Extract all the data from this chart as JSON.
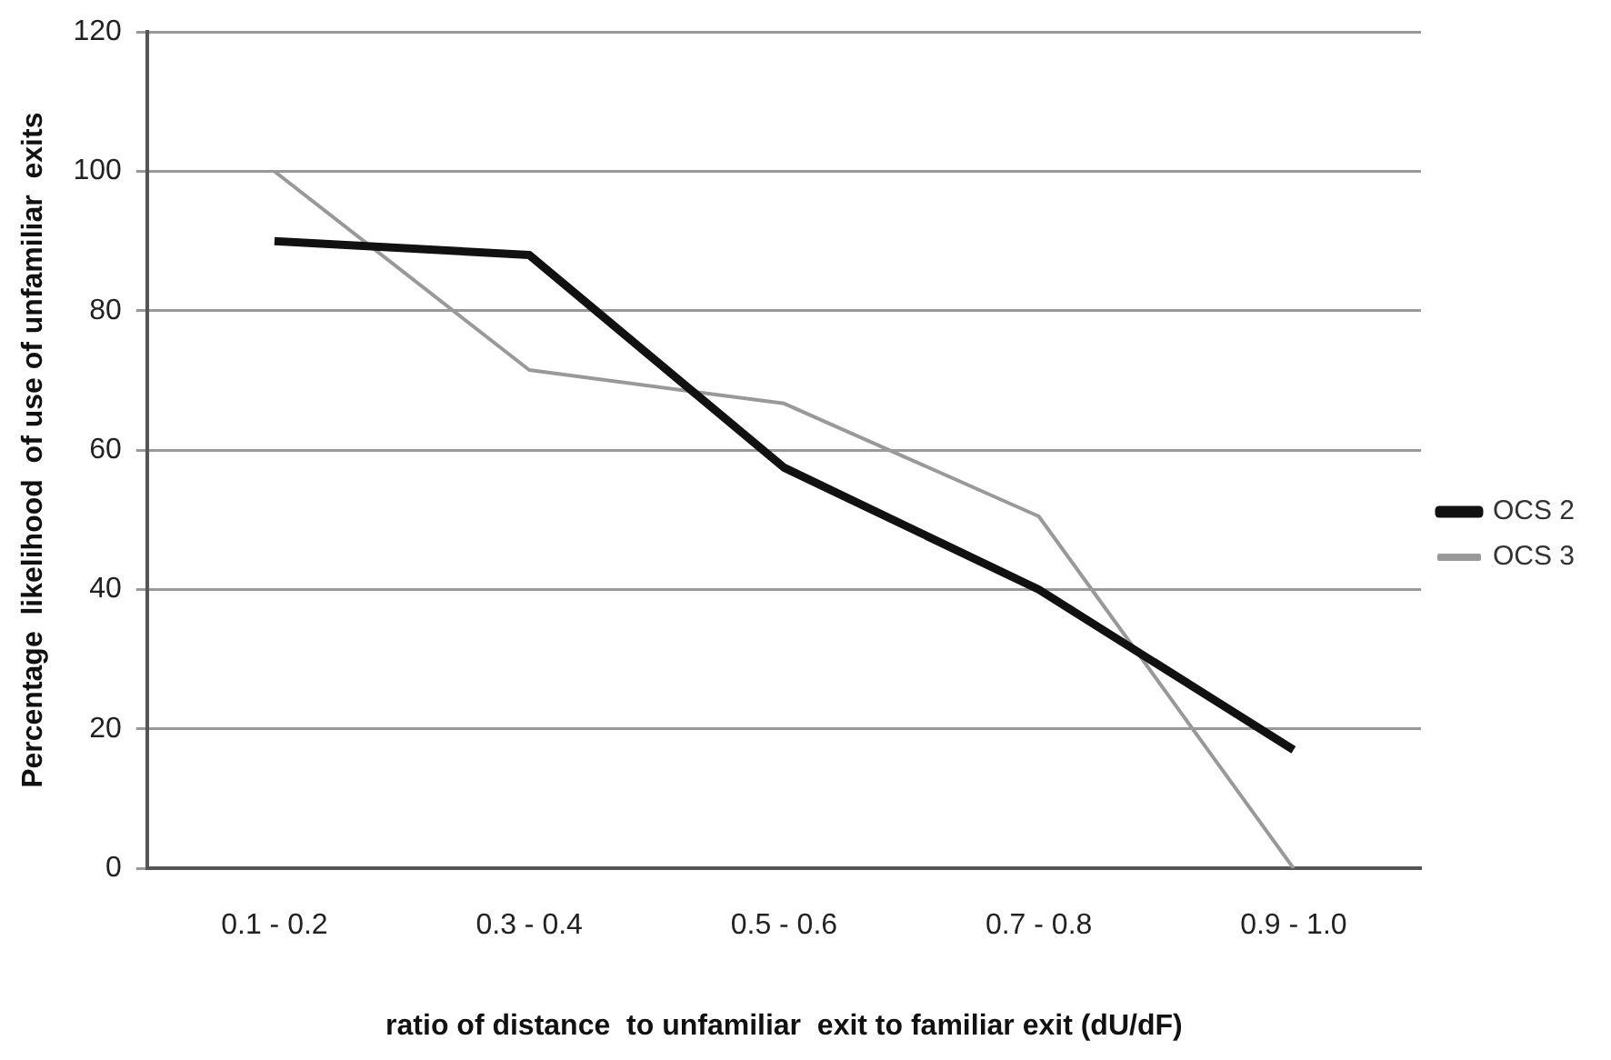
{
  "chart_data": {
    "type": "line",
    "xlabel": "ratio of distance  to unfamiliar  exit to familiar exit (dU/dF)",
    "ylabel": "Percentage  likelihood  of use of unfamiliar  exits",
    "categories": [
      "0.1 - 0.2",
      "0.3 - 0.4",
      "0.5 - 0.6",
      "0.7 - 0.8",
      "0.9 - 1.0"
    ],
    "series": [
      {
        "name": "OCS 2",
        "color": "#111111",
        "values": [
          90,
          88,
          57.5,
          40,
          17
        ]
      },
      {
        "name": "OCS 3",
        "color": "#999999",
        "values": [
          100,
          71.5,
          66.7,
          50.5,
          0
        ]
      }
    ],
    "ylim": [
      0,
      120
    ],
    "yticks": [
      0,
      20,
      40,
      60,
      80,
      100,
      120
    ],
    "grid": "y",
    "legend": "right",
    "marker": "none",
    "line_style": "solid"
  }
}
